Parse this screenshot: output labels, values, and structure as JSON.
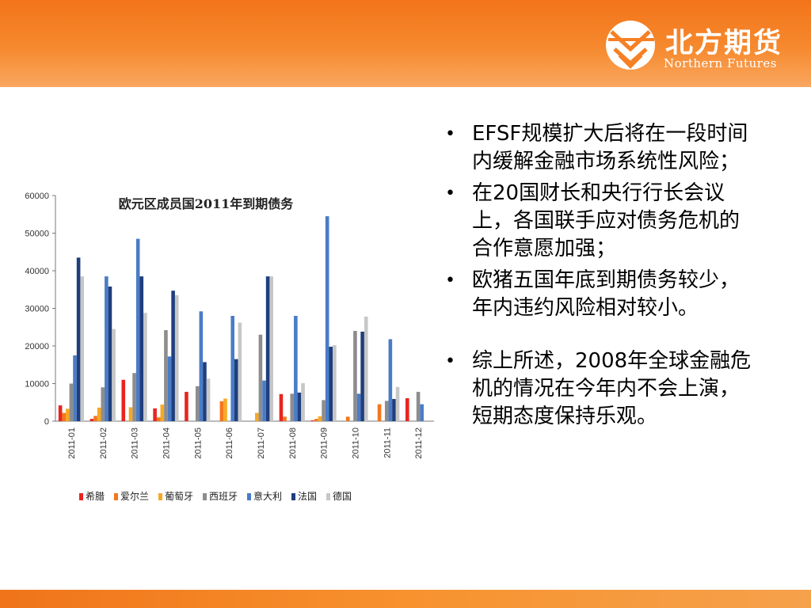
{
  "logo": {
    "brand_cn": "北方期货",
    "brand_en": "Northern Futures"
  },
  "bullets": [
    "EFSF规模扩大后将在一段时间内缓解金融市场系统性风险；",
    "在20国财长和央行行长会议上，各国联手应对债务危机的合作意愿加强；",
    "欧猪五国年底到期债务较少，年内违约风险相对较小。",
    "综上所述，2008年全球金融危机的情况在今年内不会上演，短期态度保持乐观。"
  ],
  "chart_data": {
    "type": "bar",
    "title": "欧元区成员国2011年到期债务",
    "xlabel": "",
    "ylabel": "",
    "ylim": [
      0,
      60000
    ],
    "yticks": [
      "0",
      "10000",
      "20000",
      "30000",
      "40000",
      "50000",
      "60000"
    ],
    "grid": false,
    "legend_position": "bottom",
    "categories": [
      "2011-01",
      "2011-02",
      "2011-03",
      "2011-04",
      "2011-05",
      "2011-06",
      "2011-07",
      "2011-08",
      "2011-09",
      "2011-10",
      "2011-11",
      "2011-12"
    ],
    "series": [
      {
        "name": "希腊",
        "color": "#e8251f",
        "values": [
          4200,
          600,
          11000,
          3400,
          7800,
          0,
          0,
          7200,
          200,
          0,
          0,
          6100
        ]
      },
      {
        "name": "爱尔兰",
        "color": "#f4761d",
        "values": [
          2200,
          1400,
          0,
          1000,
          0,
          5300,
          0,
          1200,
          600,
          1200,
          4500,
          0
        ]
      },
      {
        "name": "葡萄牙",
        "color": "#f7a823",
        "values": [
          3300,
          3600,
          3700,
          4400,
          0,
          6000,
          2200,
          0,
          1300,
          0,
          0,
          0
        ]
      },
      {
        "name": "西班牙",
        "color": "#8d8d8d",
        "values": [
          10000,
          9000,
          12800,
          24200,
          9300,
          0,
          23000,
          7300,
          5600,
          24000,
          5400,
          7800
        ]
      },
      {
        "name": "意大利",
        "color": "#4a7cc6",
        "values": [
          17500,
          38500,
          48500,
          17200,
          29200,
          28000,
          10800,
          28000,
          54500,
          7300,
          21800,
          4500
        ]
      },
      {
        "name": "法国",
        "color": "#1f3e7d",
        "values": [
          43500,
          35800,
          38500,
          34700,
          15700,
          16500,
          38500,
          7600,
          19800,
          23800,
          5900,
          0
        ]
      },
      {
        "name": "德国",
        "color": "#c7c7c7",
        "values": [
          38500,
          24500,
          28800,
          33500,
          11300,
          26200,
          38500,
          10100,
          20200,
          27800,
          9100,
          0
        ]
      }
    ]
  }
}
